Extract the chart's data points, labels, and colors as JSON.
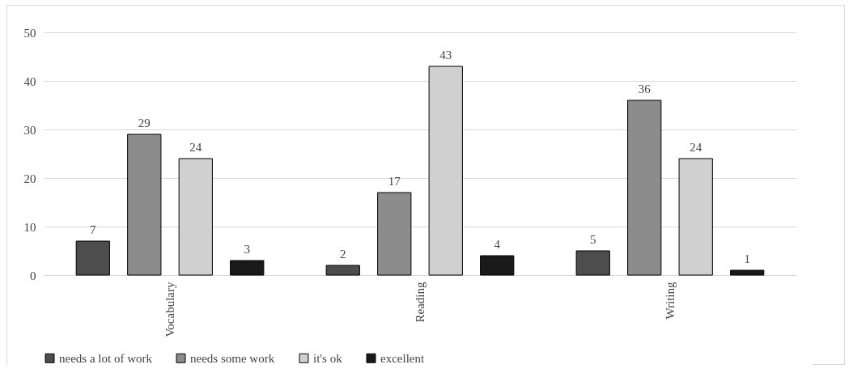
{
  "chart_data": {
    "type": "bar",
    "categories": [
      "Vocabulary",
      "Reading",
      "Writing"
    ],
    "series": [
      {
        "name": "needs a lot of work",
        "color": "#4d4d4d",
        "values": [
          7,
          2,
          5
        ]
      },
      {
        "name": "needs some work",
        "color": "#8c8c8c",
        "values": [
          29,
          17,
          36
        ]
      },
      {
        "name": "it's ok",
        "color": "#d0d0d0",
        "values": [
          24,
          43,
          24
        ]
      },
      {
        "name": "excellent",
        "color": "#1a1a1a",
        "values": [
          3,
          4,
          1
        ]
      }
    ],
    "ylim": [
      0,
      50
    ],
    "yticks": [
      0,
      10,
      20,
      30,
      40,
      50
    ],
    "grid": "y",
    "legend": "bottom",
    "data_labels": true
  }
}
